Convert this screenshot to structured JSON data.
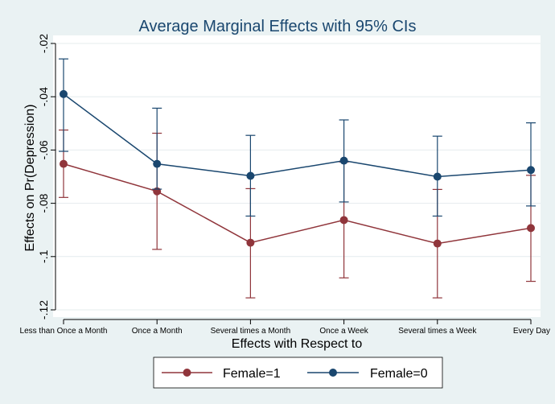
{
  "chart_data": {
    "type": "line",
    "title": "Average Marginal Effects with 95% CIs",
    "xlabel": "Effects with Respect to",
    "ylabel": "Effects on Pr(Depression)",
    "categories": [
      "Less than Once a Month",
      "Once a Month",
      "Several times a Month",
      "Once a Week",
      "Several times a Week",
      "Every Day"
    ],
    "ylim": [
      -0.12,
      -0.02
    ],
    "yticks": [
      -0.12,
      -0.1,
      -0.08,
      -0.06,
      -0.04,
      -0.02
    ],
    "ytick_labels": [
      "-.12",
      "-.1",
      "-.08",
      "-.06",
      "-.04",
      "-.02"
    ],
    "grid": true,
    "series": [
      {
        "name": "Female=1",
        "color": "#90353b",
        "values": [
          -0.0652,
          -0.0755,
          -0.0948,
          -0.0863,
          -0.0951,
          -0.0893
        ],
        "ci_low": [
          -0.0778,
          -0.0973,
          -0.1155,
          -0.108,
          -0.1155,
          -0.1093
        ],
        "ci_high": [
          -0.0525,
          -0.0537,
          -0.0745,
          -0.0645,
          -0.0748,
          -0.0695
        ]
      },
      {
        "name": "Female=0",
        "color": "#1a476f",
        "values": [
          -0.039,
          -0.0652,
          -0.0697,
          -0.064,
          -0.07,
          -0.0675
        ],
        "ci_low": [
          -0.0605,
          -0.0747,
          -0.0848,
          -0.0795,
          -0.0848,
          -0.081
        ],
        "ci_high": [
          -0.0258,
          -0.0443,
          -0.0545,
          -0.0487,
          -0.0548,
          -0.0498
        ]
      }
    ],
    "legend": {
      "position": "bottom",
      "labels": [
        "Female=1",
        "Female=0"
      ]
    }
  }
}
